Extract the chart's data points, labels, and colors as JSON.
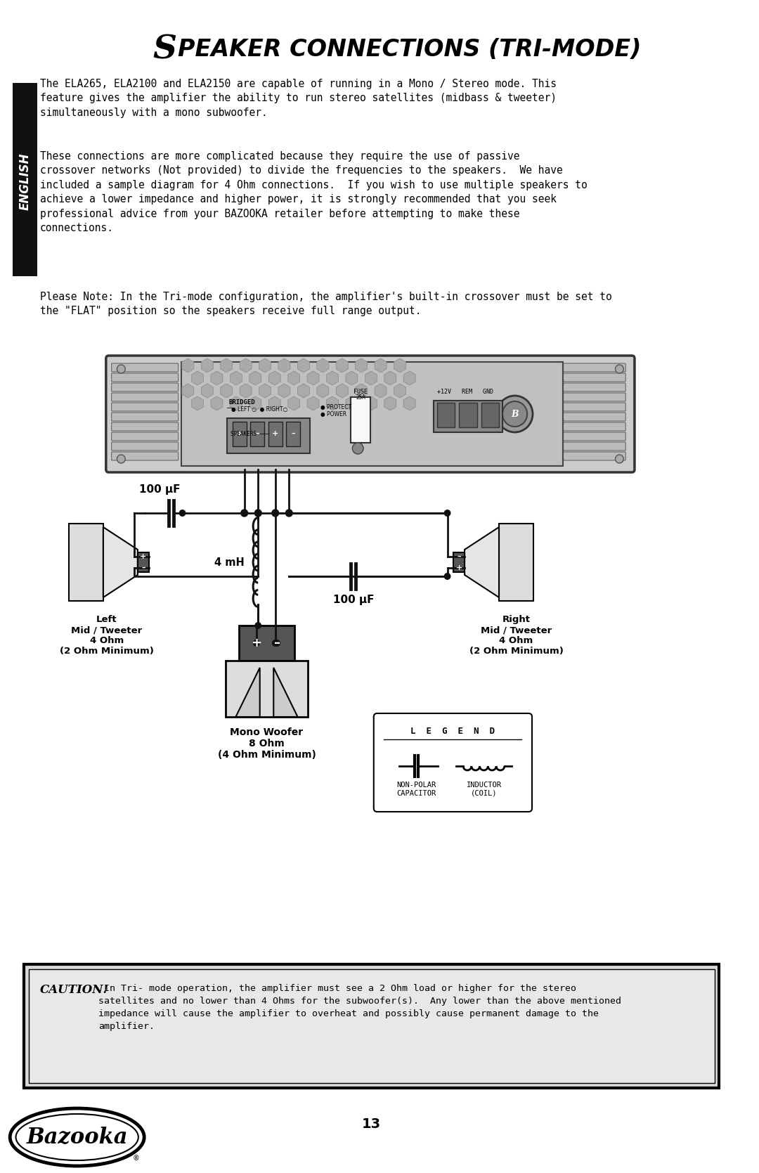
{
  "title_S": "S",
  "title_rest": "PEAKER CONNECTIONS (TRI-MODE)",
  "para1": "The ELA265, ELA2100 and ELA2150 are capable of running in a Mono / Stereo mode. This\nfeature gives the amplifier the ability to run stereo satellites (midbass & tweeter)\nsimultaneously with a mono subwoofer.",
  "para2": "These connections are more complicated because they require the use of passive\ncrossover networks (Not provided) to divide the frequencies to the speakers.  We have\nincluded a sample diagram for 4 Ohm connections.  If you wish to use multiple speakers to\nachieve a lower impedance and higher power, it is strongly recommended that you seek\nprofessional advice from your BAZOOKA retailer before attempting to make these\nconnections.",
  "para3": "Please Note: In the Tri-mode configuration, the amplifier's built-in crossover must be set to\nthe \"FLAT\" position so the speakers receive full range output.",
  "caution_bold": "CAUTION!",
  "caution_text": " In Tri- mode operation, the amplifier must see a 2 Ohm load or higher for the stereo\nsatellites and no lower than 4 Ohms for the subwoofer(s).  Any lower than the above mentioned\nimpedance will cause the amplifier to overheat and possibly cause permanent damage to the\namplifier.",
  "page_num": "13",
  "english_label": "ENGLISH",
  "left_label": "Left\nMid / Tweeter\n4 Ohm\n(2 Ohm Minimum)",
  "right_label": "Right\nMid / Tweeter\n4 Ohm\n(2 Ohm Minimum)",
  "mono_label": "Mono Woofer\n8 Ohm\n(4 Ohm Minimum)",
  "cap_label1": "100 μF",
  "cap_label2": "100 μF",
  "ind_label": "4 mH",
  "legend_title": "L  E  G  E  N  D",
  "legend_cap": "NON-POLAR\nCAPACITOR",
  "legend_ind": "INDUCTOR\n(COIL)",
  "bg_color": "#ffffff",
  "text_color": "#000000",
  "english_bg": "#111111",
  "caution_bg": "#d8d8d8",
  "wire_color": "#111111",
  "amp_body_color": "#d0d0d0",
  "amp_dark": "#888888",
  "amp_heatsink": "#b8b8b8"
}
